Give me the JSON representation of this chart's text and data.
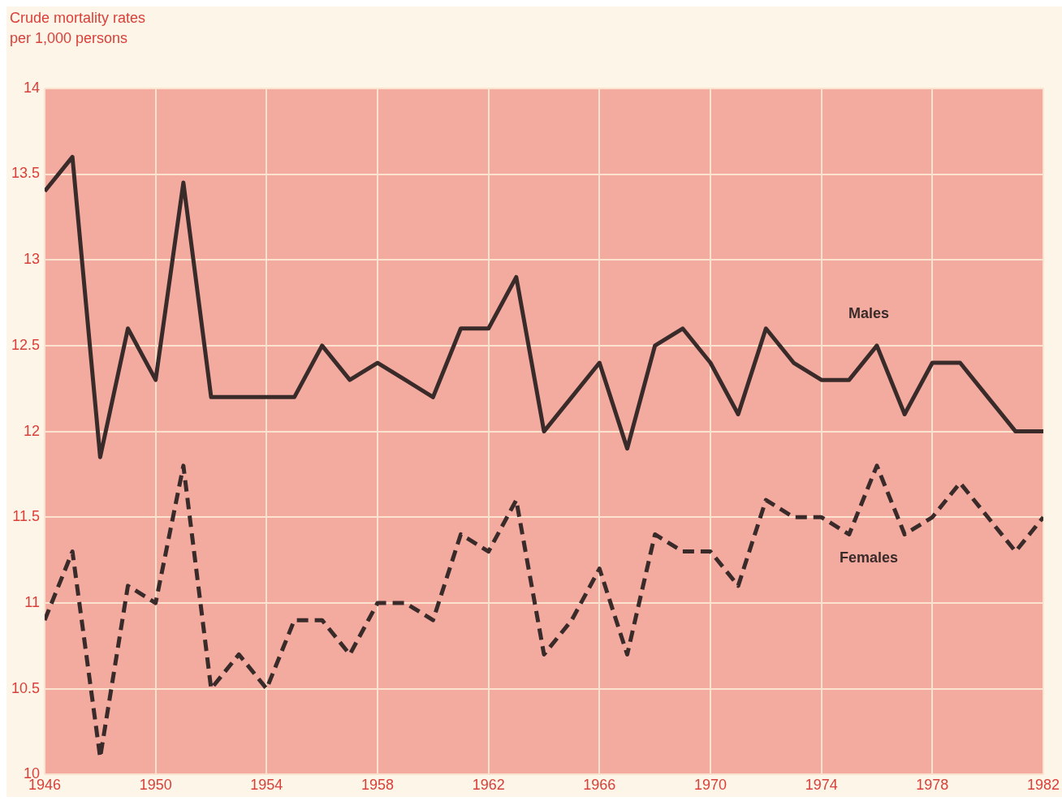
{
  "chart_data": {
    "type": "line",
    "ylabel": "Crude mortality rates per 1,000 persons",
    "x": [
      1946,
      1947,
      1948,
      1949,
      1950,
      1951,
      1952,
      1953,
      1954,
      1955,
      1956,
      1957,
      1958,
      1959,
      1960,
      1961,
      1962,
      1963,
      1964,
      1965,
      1966,
      1967,
      1968,
      1969,
      1970,
      1971,
      1972,
      1973,
      1974,
      1975,
      1976,
      1977,
      1978,
      1979,
      1980,
      1981,
      1982
    ],
    "series": [
      {
        "name": "Males",
        "color": "#3a2b2b",
        "line_style": "solid",
        "values": [
          13.4,
          13.6,
          11.85,
          12.6,
          12.3,
          13.45,
          12.2,
          12.2,
          12.2,
          12.2,
          12.5,
          12.3,
          12.4,
          12.3,
          12.2,
          12.6,
          12.6,
          12.9,
          12.0,
          12.2,
          12.4,
          11.9,
          12.5,
          12.6,
          12.4,
          12.1,
          12.6,
          12.4,
          12.3,
          12.3,
          12.5,
          12.1,
          12.4,
          12.4,
          12.2,
          12.0,
          12.0
        ]
      },
      {
        "name": "Females",
        "color": "#3a2b2b",
        "line_style": "dashed",
        "values": [
          10.9,
          11.3,
          10.1,
          11.1,
          11.0,
          11.8,
          10.5,
          10.7,
          10.5,
          10.9,
          10.9,
          10.7,
          11.0,
          11.0,
          10.9,
          11.4,
          11.3,
          11.6,
          10.7,
          10.9,
          11.2,
          10.7,
          11.4,
          11.3,
          11.3,
          11.1,
          11.6,
          11.5,
          11.5,
          11.4,
          11.8,
          11.4,
          11.5,
          11.7,
          11.5,
          11.3,
          11.5
        ]
      }
    ],
    "xlim": [
      1946,
      1982
    ],
    "xticks": [
      1946,
      1950,
      1954,
      1958,
      1962,
      1966,
      1970,
      1974,
      1978,
      1982
    ],
    "ylim": [
      10,
      14
    ],
    "yticks": [
      10,
      10.5,
      11,
      11.5,
      12,
      12.5,
      13,
      13.5,
      14
    ],
    "grid": true,
    "legend": false,
    "marker": "none"
  }
}
